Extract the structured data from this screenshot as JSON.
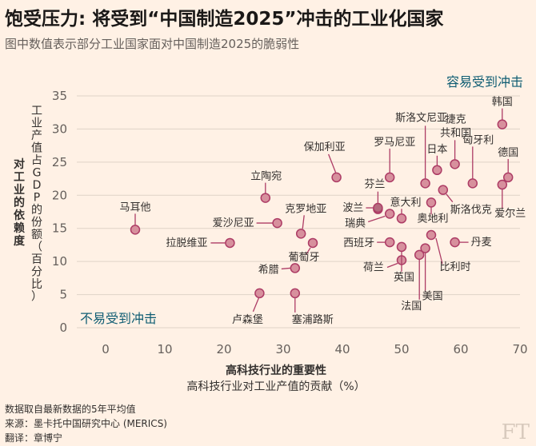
{
  "title": "饱受压力: 将受到“中国制造2025”冲击的工业化国家",
  "subtitle": "图中数值表示部分工业国家面对中国制造2025的脆弱性",
  "footer": {
    "line1": "数据取自最新数据的5年平均值",
    "line2": "来源：墨卡托中国研究中心 (MERICS)",
    "line3": "翻译：章博宁"
  },
  "logo": "FT",
  "chart_data": {
    "type": "scatter",
    "xlabel_bold": "高科技行业的重要性",
    "xlabel": "高科技行业对工业产值的贡献（%）",
    "ylabel_bold": "对工业的依赖度",
    "ylabel": "工业产值占GDP的份额（百分比）",
    "xlim": [
      -5,
      70
    ],
    "ylim": [
      0,
      35
    ],
    "xticks": [
      "0",
      "10",
      "20",
      "30",
      "40",
      "50",
      "60",
      "70"
    ],
    "yticks": [
      "0",
      "5",
      "10",
      "15",
      "20",
      "25",
      "30",
      "35"
    ],
    "grid": true,
    "annotations": {
      "high": "容易受到冲击",
      "low": "不易受到冲击"
    },
    "points": [
      {
        "name": "马耳他",
        "x": 5,
        "y": 14.8
      },
      {
        "name": "拉脱维亚",
        "x": 21,
        "y": 12.8
      },
      {
        "name": "立陶宛",
        "x": 27,
        "y": 19.6
      },
      {
        "name": "爱沙尼亚",
        "x": 29,
        "y": 15.8
      },
      {
        "name": "克罗地亚",
        "x": 33,
        "y": 14.2
      },
      {
        "name": "葡萄牙",
        "x": 35,
        "y": 12.8
      },
      {
        "name": "希腊",
        "x": 32,
        "y": 9.0
      },
      {
        "name": "卢森堡",
        "x": 26,
        "y": 5.2
      },
      {
        "name": "塞浦路斯",
        "x": 32,
        "y": 5.2
      },
      {
        "name": "保加利亚",
        "x": 39,
        "y": 22.7
      },
      {
        "name": "芬兰",
        "x": 46,
        "y": 17.9
      },
      {
        "name": "罗马尼亚",
        "x": 48,
        "y": 22.7
      },
      {
        "name": "瑞典",
        "x": 48,
        "y": 17.2
      },
      {
        "name": "意大利",
        "x": 50,
        "y": 16.5
      },
      {
        "name": "波兰",
        "x": 46,
        "y": 18.1
      },
      {
        "name": "西班牙",
        "x": 48,
        "y": 12.9
      },
      {
        "name": "荷兰",
        "x": 50,
        "y": 10.2
      },
      {
        "name": "英国",
        "x": 50,
        "y": 12.2
      },
      {
        "name": "法国",
        "x": 53,
        "y": 11.0
      },
      {
        "name": "美国",
        "x": 54,
        "y": 12.0
      },
      {
        "name": "比利时",
        "x": 55,
        "y": 14.0
      },
      {
        "name": "斯洛文尼亚",
        "x": 54,
        "y": 21.8
      },
      {
        "name": "奥地利",
        "x": 55,
        "y": 18.9
      },
      {
        "name": "日本",
        "x": 56,
        "y": 23.8
      },
      {
        "name": "斯洛伐克",
        "x": 57,
        "y": 20.8
      },
      {
        "name": "丹麦",
        "x": 59,
        "y": 12.9
      },
      {
        "name": "捷克共和国",
        "x": 59,
        "y": 24.7
      },
      {
        "name": "匈牙利",
        "x": 62,
        "y": 21.8
      },
      {
        "name": "韩国",
        "x": 67,
        "y": 30.7
      },
      {
        "name": "德国",
        "x": 68,
        "y": 22.7
      },
      {
        "name": "爱尔兰",
        "x": 67,
        "y": 21.6
      }
    ]
  }
}
